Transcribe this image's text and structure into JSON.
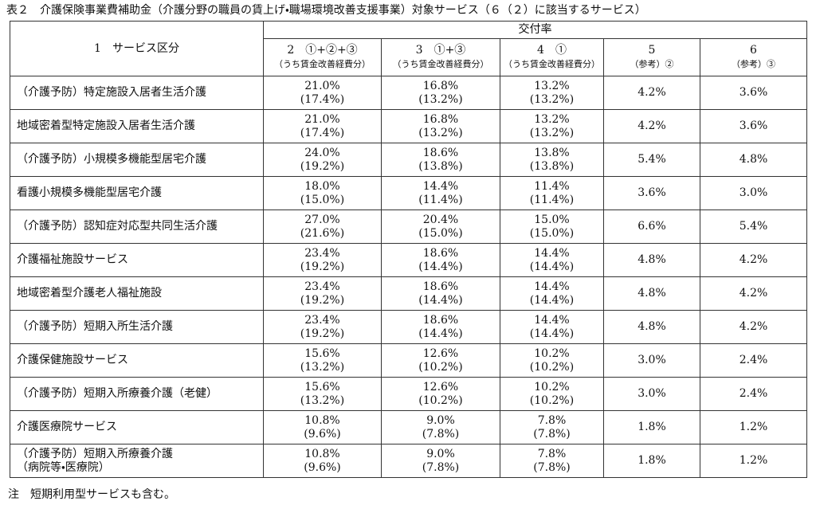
{
  "title": "表２　介護保険事業費補助金（介護分野の職員の賃上げ・職場環境改善支援事業）対象サービス（６（２）に該当するサービス）",
  "table": {
    "header": {
      "service": "1　サービス区分",
      "group": "交付率",
      "columns": [
        [
          "2　①+②+③",
          "（うち賃金改善経費分）"
        ],
        [
          "3　①+③",
          "（うち賃金改善経費分）"
        ],
        [
          "4　①",
          "（うち賃金改善経費分）"
        ],
        [
          "5",
          "（参考）②"
        ],
        [
          "6",
          "（参考）③"
        ]
      ]
    },
    "rows": [
      {
        "service": [
          "（介護予防）特定施設入居者生活介護"
        ],
        "rates": [
          [
            "21.0%",
            "(17.4%)"
          ],
          [
            "16.8%",
            "(13.2%)"
          ],
          [
            "13.2%",
            "(13.2%)"
          ],
          [
            "4.2%"
          ],
          [
            "3.6%"
          ]
        ]
      },
      {
        "service": [
          "地域密着型特定施設入居者生活介護"
        ],
        "rates": [
          [
            "21.0%",
            "(17.4%)"
          ],
          [
            "16.8%",
            "(13.2%)"
          ],
          [
            "13.2%",
            "(13.2%)"
          ],
          [
            "4.2%"
          ],
          [
            "3.6%"
          ]
        ]
      },
      {
        "service": [
          "（介護予防）小規模多機能型居宅介護"
        ],
        "rates": [
          [
            "24.0%",
            "(19.2%)"
          ],
          [
            "18.6%",
            "(13.8%)"
          ],
          [
            "13.8%",
            "(13.8%)"
          ],
          [
            "5.4%"
          ],
          [
            "4.8%"
          ]
        ]
      },
      {
        "service": [
          "看護小規模多機能型居宅介護"
        ],
        "rates": [
          [
            "18.0%",
            "(15.0%)"
          ],
          [
            "14.4%",
            "(11.4%)"
          ],
          [
            "11.4%",
            "(11.4%)"
          ],
          [
            "3.6%"
          ],
          [
            "3.0%"
          ]
        ]
      },
      {
        "service": [
          "（介護予防）認知症対応型共同生活介護"
        ],
        "rates": [
          [
            "27.0%",
            "(21.6%)"
          ],
          [
            "20.4%",
            "(15.0%)"
          ],
          [
            "15.0%",
            "(15.0%)"
          ],
          [
            "6.6%"
          ],
          [
            "5.4%"
          ]
        ]
      },
      {
        "service": [
          "介護福祉施設サービス"
        ],
        "rates": [
          [
            "23.4%",
            "(19.2%)"
          ],
          [
            "18.6%",
            "(14.4%)"
          ],
          [
            "14.4%",
            "(14.4%)"
          ],
          [
            "4.8%"
          ],
          [
            "4.2%"
          ]
        ]
      },
      {
        "service": [
          "地域密着型介護老人福祉施設"
        ],
        "rates": [
          [
            "23.4%",
            "(19.2%)"
          ],
          [
            "18.6%",
            "(14.4%)"
          ],
          [
            "14.4%",
            "(14.4%)"
          ],
          [
            "4.8%"
          ],
          [
            "4.2%"
          ]
        ]
      },
      {
        "service": [
          "（介護予防）短期入所生活介護"
        ],
        "rates": [
          [
            "23.4%",
            "(19.2%)"
          ],
          [
            "18.6%",
            "(14.4%)"
          ],
          [
            "14.4%",
            "(14.4%)"
          ],
          [
            "4.8%"
          ],
          [
            "4.2%"
          ]
        ]
      },
      {
        "service": [
          "介護保健施設サービス"
        ],
        "rates": [
          [
            "15.6%",
            "(13.2%)"
          ],
          [
            "12.6%",
            "(10.2%)"
          ],
          [
            "10.2%",
            "(10.2%)"
          ],
          [
            "3.0%"
          ],
          [
            "2.4%"
          ]
        ]
      },
      {
        "service": [
          "（介護予防）短期入所療養介護（老健）"
        ],
        "rates": [
          [
            "15.6%",
            "(13.2%)"
          ],
          [
            "12.6%",
            "(10.2%)"
          ],
          [
            "10.2%",
            "(10.2%)"
          ],
          [
            "3.0%"
          ],
          [
            "2.4%"
          ]
        ]
      },
      {
        "service": [
          "介護医療院サービス"
        ],
        "rates": [
          [
            "10.8%",
            "(9.6%)"
          ],
          [
            "9.0%",
            "(7.8%)"
          ],
          [
            "7.8%",
            "(7.8%)"
          ],
          [
            "1.8%"
          ],
          [
            "1.2%"
          ]
        ]
      },
      {
        "service": [
          "（介護予防）短期入所療養介護",
          "（病院等・医療院）"
        ],
        "rates": [
          [
            "10.8%",
            "(9.6%)"
          ],
          [
            "9.0%",
            "(7.8%)"
          ],
          [
            "7.8%",
            "(7.8%)"
          ],
          [
            "1.8%"
          ],
          [
            "1.2%"
          ]
        ]
      }
    ]
  },
  "note": "注　短期利用型サービスも含む。"
}
